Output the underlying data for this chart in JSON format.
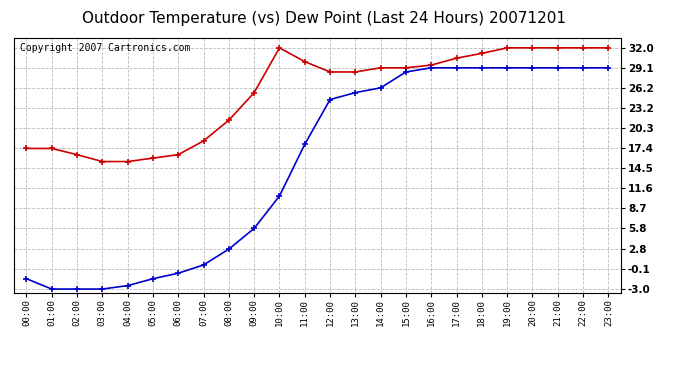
{
  "title": "Outdoor Temperature (vs) Dew Point (Last 24 Hours) 20071201",
  "copyright_text": "Copyright 2007 Cartronics.com",
  "x_labels": [
    "00:00",
    "01:00",
    "02:00",
    "03:00",
    "04:00",
    "05:00",
    "06:00",
    "07:00",
    "08:00",
    "09:00",
    "10:00",
    "11:00",
    "12:00",
    "13:00",
    "14:00",
    "15:00",
    "16:00",
    "17:00",
    "18:00",
    "19:00",
    "20:00",
    "21:00",
    "22:00",
    "23:00"
  ],
  "temp_data": [
    17.4,
    17.4,
    16.5,
    15.5,
    15.5,
    16.0,
    16.5,
    18.5,
    21.5,
    25.5,
    32.0,
    30.0,
    28.5,
    28.5,
    29.1,
    29.1,
    29.5,
    30.5,
    31.2,
    32.0,
    32.0,
    32.0,
    32.0,
    32.0
  ],
  "dew_data": [
    -1.5,
    -3.0,
    -3.0,
    -3.0,
    -2.5,
    -1.5,
    -0.7,
    0.5,
    2.8,
    5.8,
    10.5,
    18.0,
    24.5,
    25.5,
    26.2,
    28.5,
    29.1,
    29.1,
    29.1,
    29.1,
    29.1,
    29.1,
    29.1,
    29.1
  ],
  "temp_color": "#cc0000",
  "dew_color": "#0000cc",
  "bg_color": "#ffffff",
  "plot_bg_color": "#ffffff",
  "grid_color": "#bbbbbb",
  "yticks": [
    32.0,
    29.1,
    26.2,
    23.2,
    20.3,
    17.4,
    14.5,
    11.6,
    8.7,
    5.8,
    2.8,
    -0.1,
    -3.0
  ],
  "ylim": [
    -3.5,
    33.5
  ],
  "title_fontsize": 11,
  "copyright_fontsize": 7
}
